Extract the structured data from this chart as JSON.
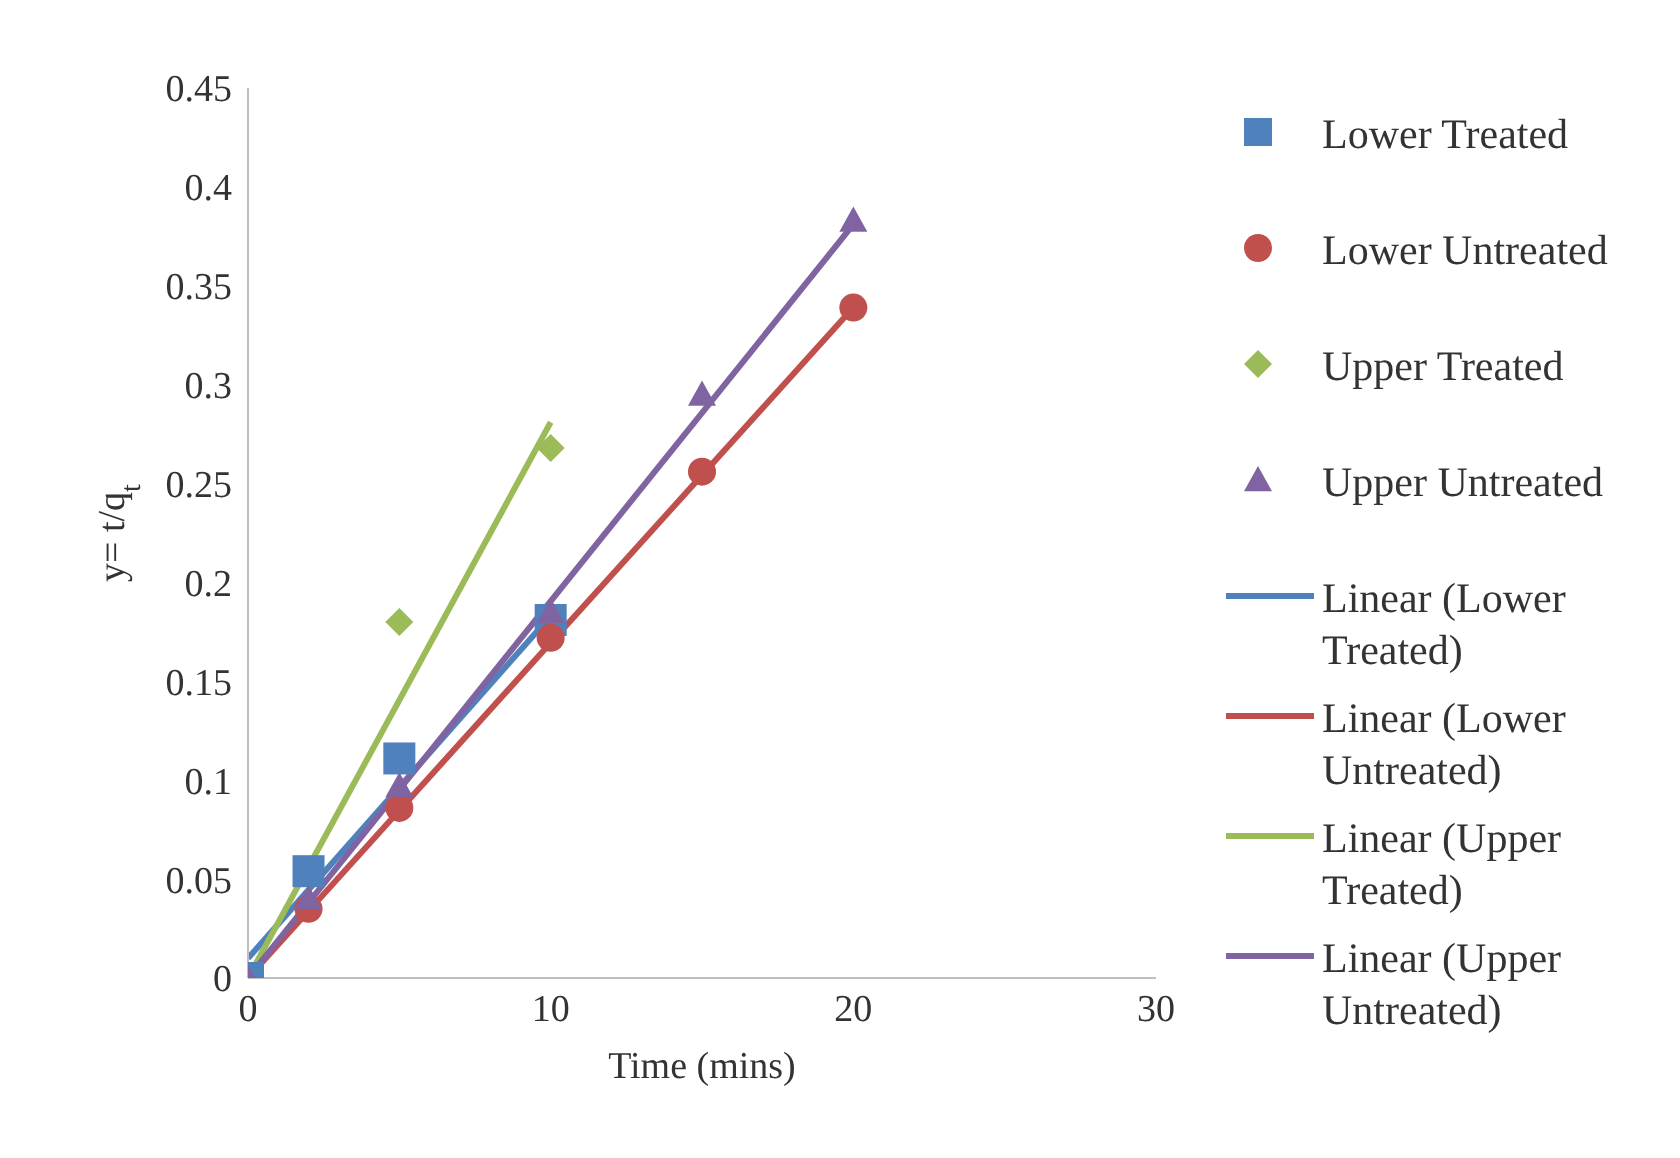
{
  "chart_data": {
    "type": "scatter",
    "xlabel": "Time (mins)",
    "ylabel": "y= t/q$_{t}$",
    "xlim": [
      0,
      30
    ],
    "xticks": [
      0,
      10,
      20,
      30
    ],
    "ylim": [
      0,
      0.45
    ],
    "yticks": [
      0,
      0.05,
      0.1,
      0.15,
      0.2,
      0.25,
      0.3,
      0.35,
      0.4,
      0.45
    ],
    "grid": false,
    "legend": "right",
    "series": [
      {
        "name": "Lower Treated",
        "marker": "square",
        "color": "#4f81bd",
        "x": [
          0,
          2,
          5,
          10
        ],
        "values": [
          0,
          0.054,
          0.111,
          0.181
        ]
      },
      {
        "name": "Lower Untreated",
        "marker": "circle",
        "color": "#c0504d",
        "x": [
          2,
          5,
          10,
          15,
          20
        ],
        "values": [
          0.035,
          0.086,
          0.172,
          0.256,
          0.339
        ]
      },
      {
        "name": "Upper Treated",
        "marker": "diamond",
        "color": "#9bbb59",
        "x": [
          5,
          10
        ],
        "values": [
          0.18,
          0.268
        ]
      },
      {
        "name": "Upper Untreated",
        "marker": "triangle",
        "color": "#8064a2",
        "x": [
          0,
          2,
          5,
          10,
          15,
          20
        ],
        "values": [
          0,
          0.04,
          0.097,
          0.185,
          0.295,
          0.383
        ]
      },
      {
        "name": "Linear (Lower Treated)",
        "type": "line",
        "marker": "none",
        "color": "#4f81bd",
        "x": [
          0,
          10
        ],
        "values": [
          0.01,
          0.183
        ]
      },
      {
        "name": "Linear (Lower Untreated)",
        "type": "line",
        "marker": "none",
        "color": "#c0504d",
        "x": [
          0,
          20
        ],
        "values": [
          0,
          0.339
        ]
      },
      {
        "name": "Linear (Upper Treated)",
        "type": "line",
        "marker": "none",
        "color": "#9bbb59",
        "x": [
          0,
          10
        ],
        "values": [
          0,
          0.281
        ]
      },
      {
        "name": "Linear (Upper Untreated)",
        "type": "line",
        "marker": "none",
        "color": "#8064a2",
        "x": [
          0,
          20
        ],
        "values": [
          0,
          0.381
        ]
      }
    ]
  }
}
